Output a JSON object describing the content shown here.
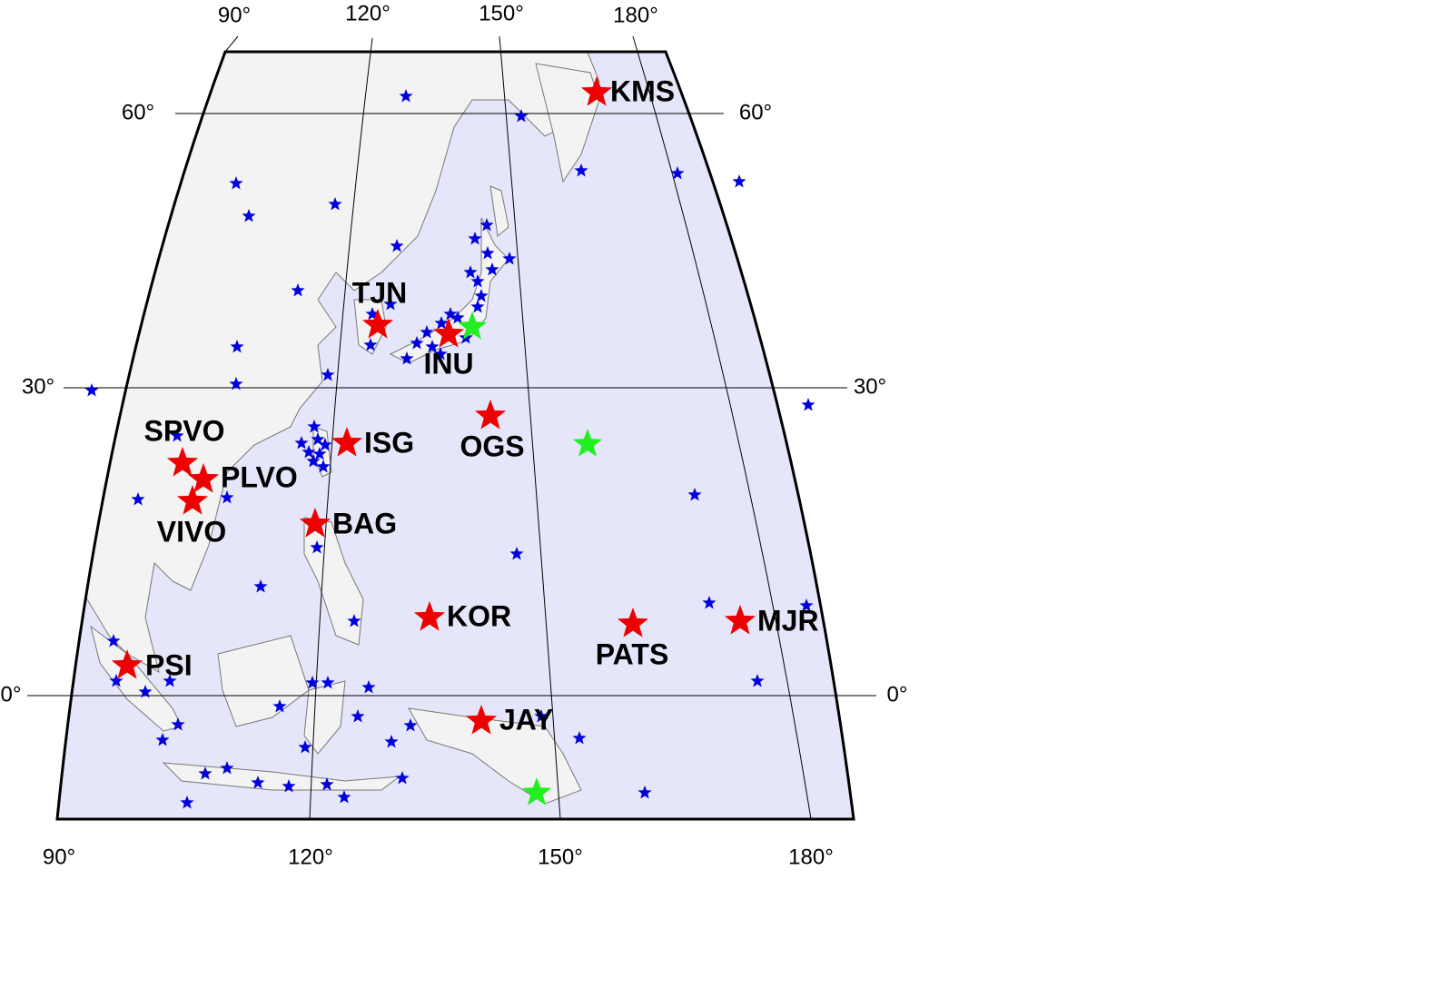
{
  "map": {
    "top_labels": [
      "90°",
      "120°",
      "150°",
      "180°"
    ],
    "left_labels": [
      "60°",
      "30°",
      "0°"
    ],
    "right_labels": [
      "60°",
      "30°",
      "0°"
    ],
    "bottom_labels": [
      "90°",
      "120°",
      "150°",
      "180°"
    ],
    "stations": [
      {
        "label": "KMS"
      },
      {
        "label": "TJN"
      },
      {
        "label": "INU"
      },
      {
        "label": "SPVO"
      },
      {
        "label": "ISG"
      },
      {
        "label": "OGS"
      },
      {
        "label": "PLVO"
      },
      {
        "label": "VIVO"
      },
      {
        "label": "BAG"
      },
      {
        "label": "KOR"
      },
      {
        "label": "PATS"
      },
      {
        "label": "MJR"
      },
      {
        "label": "PSI"
      },
      {
        "label": "JAY"
      }
    ]
  }
}
